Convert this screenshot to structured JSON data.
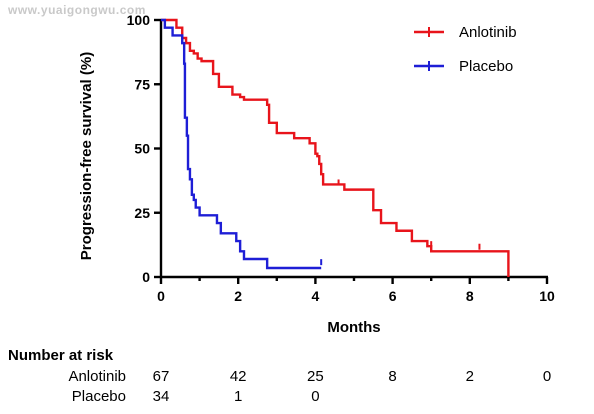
{
  "watermark": "www.yuaigongwu.com",
  "colors": {
    "Anlotinib": "#e8141b",
    "Placebo": "#1e1ed6"
  },
  "chart_data": {
    "type": "line",
    "step": true,
    "xlabel": "Months",
    "ylabel": "Progression-free survival  (%)",
    "xlim": [
      0,
      10
    ],
    "ylim": [
      0,
      100
    ],
    "xticks": [
      "0",
      "2",
      "4",
      "6",
      "8",
      "10"
    ],
    "yticks": [
      "0",
      "25",
      "50",
      "75",
      "100"
    ],
    "grid": false,
    "legend_position": "top-right",
    "series": [
      {
        "name": "Anlotinib",
        "points": [
          [
            0,
            100
          ],
          [
            0.4,
            97
          ],
          [
            0.55,
            93
          ],
          [
            0.65,
            91
          ],
          [
            0.75,
            88
          ],
          [
            0.85,
            87
          ],
          [
            0.95,
            85
          ],
          [
            1.05,
            84
          ],
          [
            1.35,
            79
          ],
          [
            1.5,
            74
          ],
          [
            1.85,
            71
          ],
          [
            2.05,
            70
          ],
          [
            2.15,
            69
          ],
          [
            2.75,
            67
          ],
          [
            2.8,
            60
          ],
          [
            3.0,
            56
          ],
          [
            3.45,
            54
          ],
          [
            3.85,
            52
          ],
          [
            4.0,
            48
          ],
          [
            4.05,
            47
          ],
          [
            4.1,
            44
          ],
          [
            4.15,
            40
          ],
          [
            4.2,
            36
          ],
          [
            4.75,
            34
          ],
          [
            5.5,
            26
          ],
          [
            5.7,
            21
          ],
          [
            6.1,
            18
          ],
          [
            6.5,
            14
          ],
          [
            6.9,
            12
          ],
          [
            7.0,
            10
          ],
          [
            9.0,
            0
          ]
        ],
        "censored": [
          [
            4.6,
            36
          ],
          [
            7.0,
            12
          ],
          [
            8.25,
            11
          ]
        ]
      },
      {
        "name": "Placebo",
        "points": [
          [
            0,
            100
          ],
          [
            0.1,
            97
          ],
          [
            0.3,
            94
          ],
          [
            0.55,
            91
          ],
          [
            0.6,
            83
          ],
          [
            0.62,
            62
          ],
          [
            0.67,
            55
          ],
          [
            0.7,
            42
          ],
          [
            0.75,
            38
          ],
          [
            0.8,
            32
          ],
          [
            0.85,
            30
          ],
          [
            0.9,
            27
          ],
          [
            1.0,
            24
          ],
          [
            1.45,
            21
          ],
          [
            1.55,
            17
          ],
          [
            1.95,
            14
          ],
          [
            2.05,
            10
          ],
          [
            2.15,
            7
          ],
          [
            2.75,
            3.5
          ]
        ],
        "censored": [
          [
            4.15,
            5
          ]
        ]
      }
    ],
    "series_end": {
      "Anlotinib": 9.0,
      "Placebo": 4.15
    }
  },
  "risk_table": {
    "title": "Number at risk",
    "rows": [
      {
        "label": "Anlotinib",
        "values": [
          "67",
          "42",
          "25",
          "8",
          "2",
          "0"
        ],
        "at": [
          0,
          2,
          4,
          6,
          8,
          10
        ]
      },
      {
        "label": "Placebo",
        "values": [
          "34",
          "1",
          "0"
        ],
        "at": [
          0,
          2,
          4
        ]
      }
    ]
  }
}
